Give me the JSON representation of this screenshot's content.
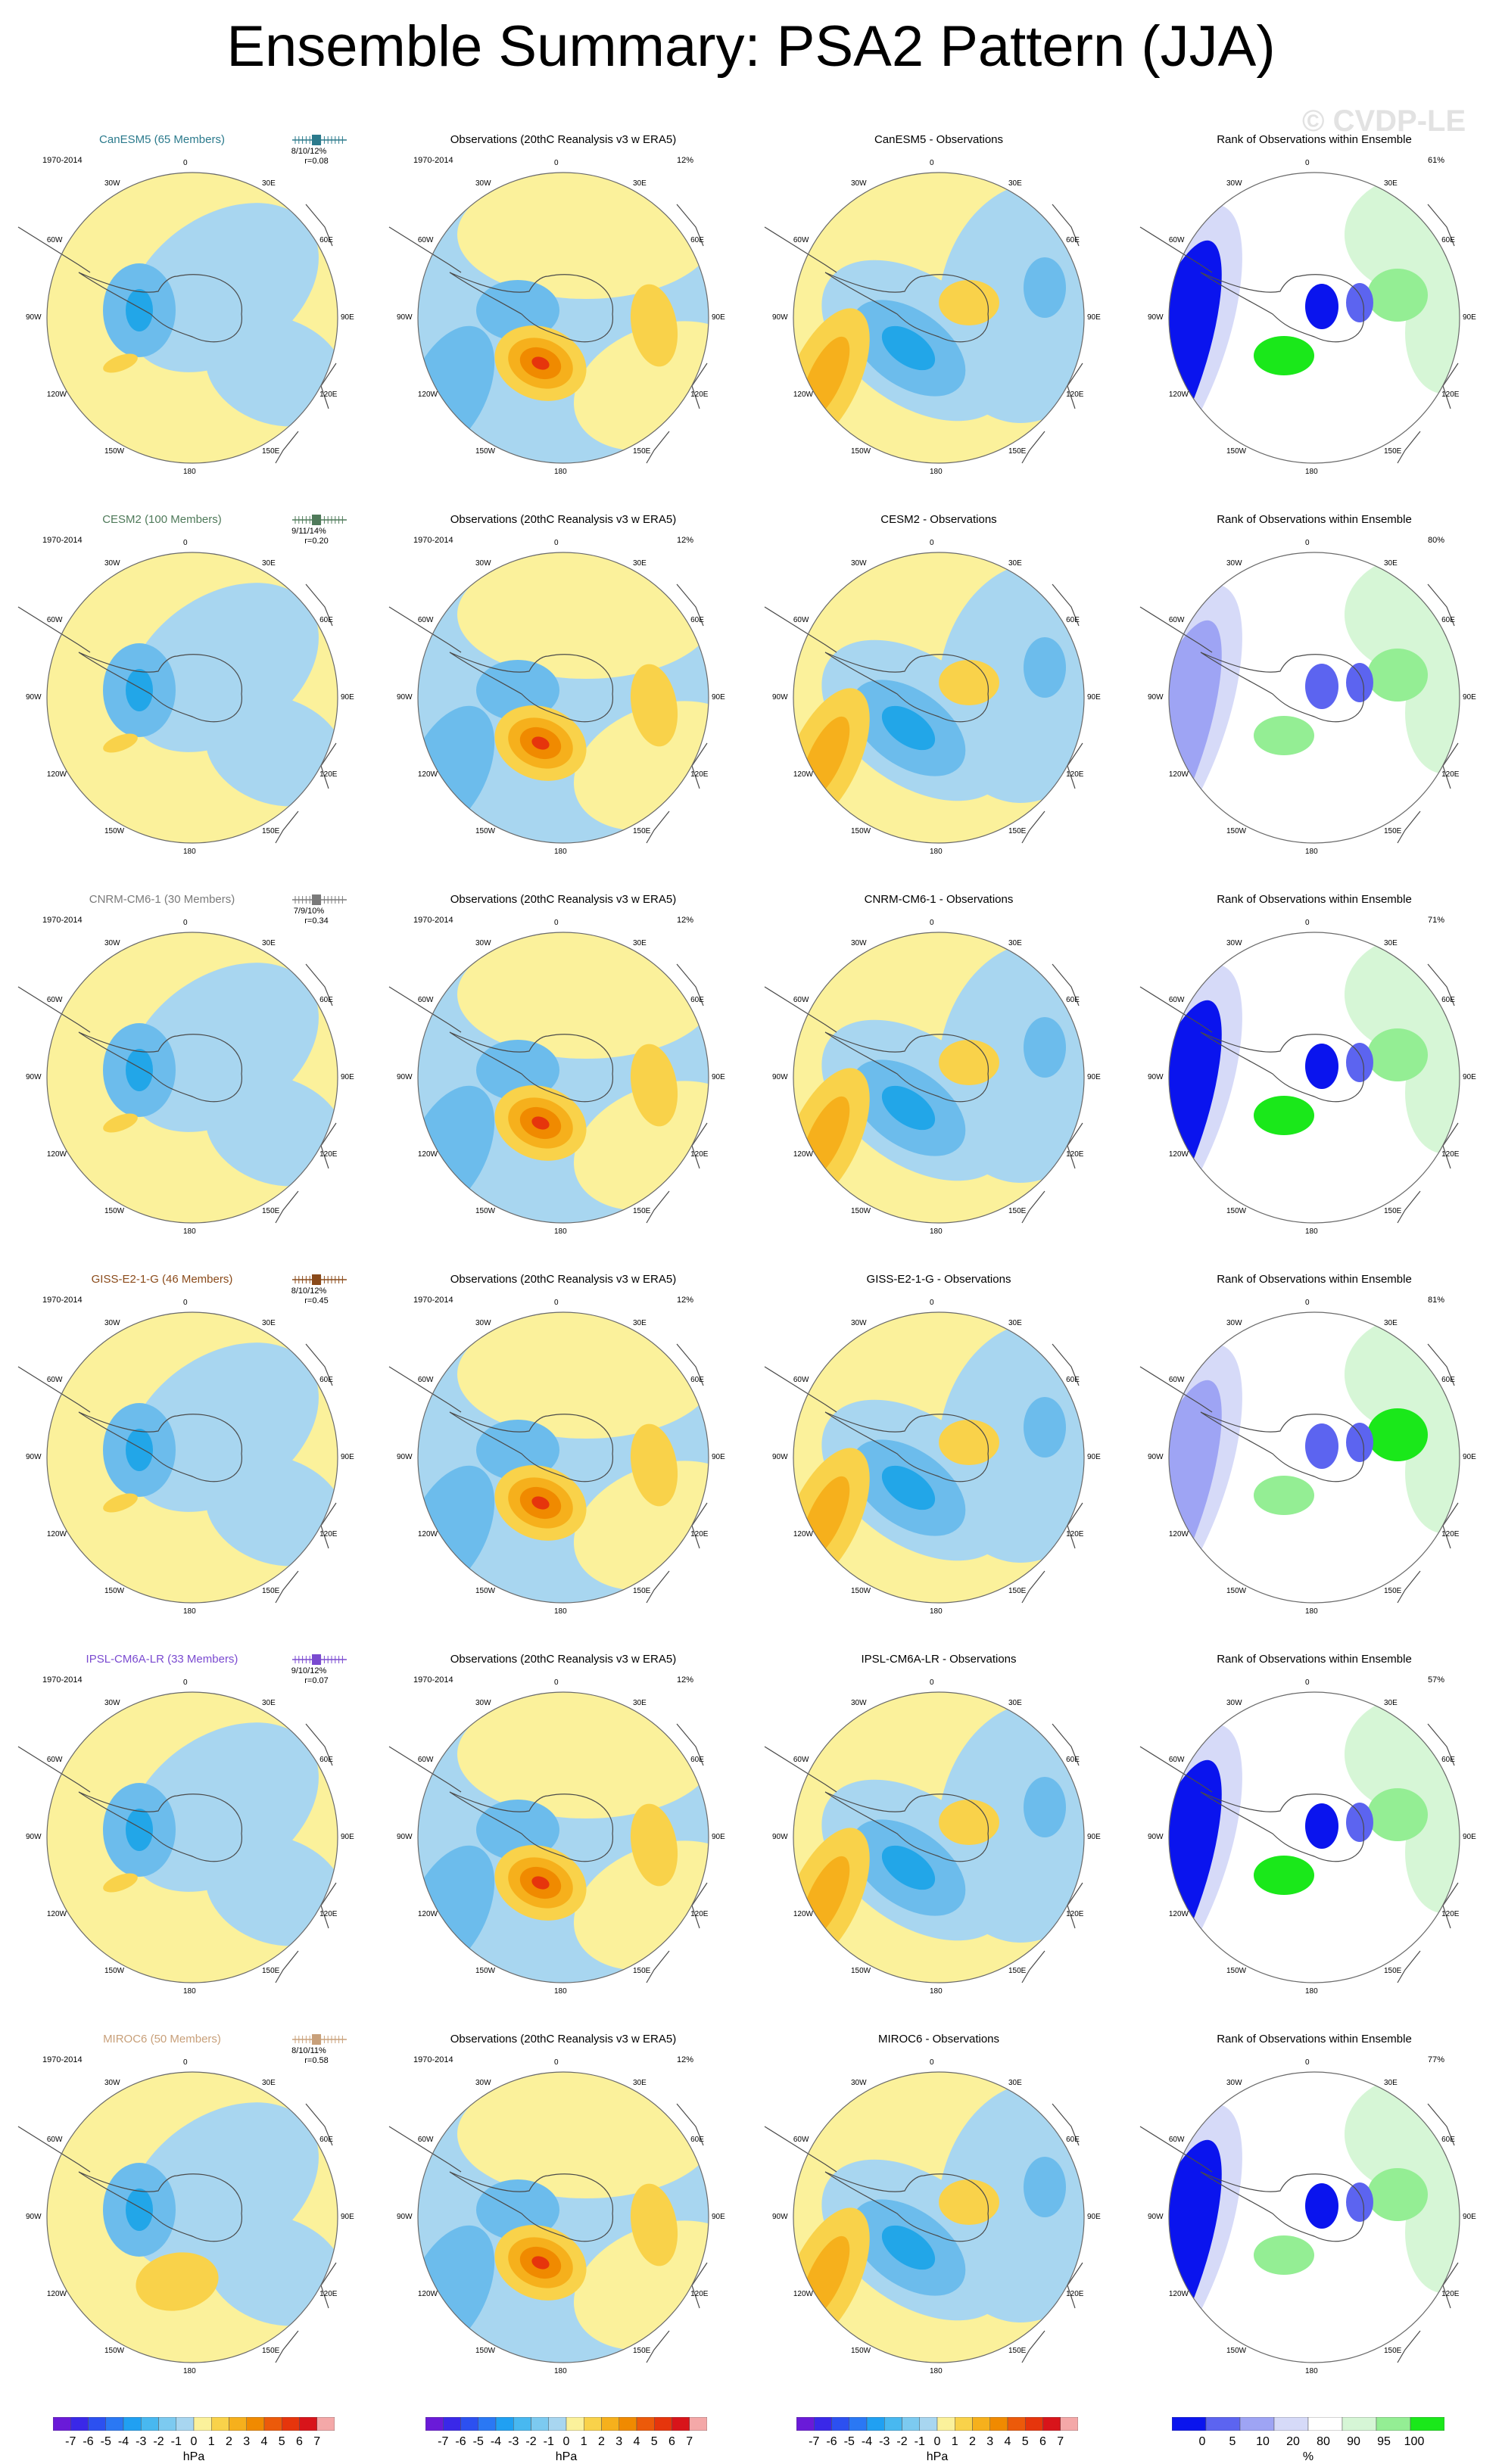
{
  "page": {
    "title": "Ensemble Summary: PSA2 Pattern (JJA)",
    "watermark": "© CVDP-LE"
  },
  "colors": {
    "land_yellow": "#fbf19b",
    "ocean_blue": "#a8d6f0",
    "mid_blue": "#6cbcec",
    "deep_blue": "#22a6e8",
    "orange_light": "#f9d24a",
    "orange_mid": "#f6b01c",
    "orange_deep": "#f08a00",
    "red": "#e6350c",
    "rank_blue": "#0a14ee",
    "rank_green": "#1ae81a"
  },
  "map_labels": {
    "lon": [
      "0",
      "30E",
      "60E",
      "90E",
      "120E",
      "150E",
      "180",
      "150W",
      "120W",
      "90W",
      "60W",
      "30W"
    ]
  },
  "rows": [
    {
      "model_title": "CanESM5 (65 Members)",
      "model_color": "#2b7a8c",
      "period": "1970-2014",
      "stats_line1": "8/10/12%",
      "stats_line2": "r=0.08",
      "obs_title": "Observations (20thC Reanalysis v3 w ERA5)",
      "obs_period": "1970-2014",
      "obs_pct": "12%",
      "diff_title": "CanESM5 - Observations",
      "rank_title": "Rank of Observations within Ensemble",
      "rank_pct": "61%"
    },
    {
      "model_title": "CESM2 (100 Members)",
      "model_color": "#4f7a5a",
      "period": "1970-2014",
      "stats_line1": "9/11/14%",
      "stats_line2": "r=0.20",
      "obs_title": "Observations (20thC Reanalysis v3 w ERA5)",
      "obs_period": "1970-2014",
      "obs_pct": "12%",
      "diff_title": "CESM2 - Observations",
      "rank_title": "Rank of Observations within Ensemble",
      "rank_pct": "80%"
    },
    {
      "model_title": "CNRM-CM6-1 (30 Members)",
      "model_color": "#7a7a7a",
      "period": "1970-2014",
      "stats_line1": "7/9/10%",
      "stats_line2": "r=0.34",
      "obs_title": "Observations (20thC Reanalysis v3 w ERA5)",
      "obs_period": "1970-2014",
      "obs_pct": "12%",
      "diff_title": "CNRM-CM6-1 - Observations",
      "rank_title": "Rank of Observations within Ensemble",
      "rank_pct": "71%"
    },
    {
      "model_title": "GISS-E2-1-G (46 Members)",
      "model_color": "#8a4a1a",
      "period": "1970-2014",
      "stats_line1": "8/10/12%",
      "stats_line2": "r=0.45",
      "obs_title": "Observations (20thC Reanalysis v3 w ERA5)",
      "obs_period": "1970-2014",
      "obs_pct": "12%",
      "diff_title": "GISS-E2-1-G - Observations",
      "rank_title": "Rank of Observations within Ensemble",
      "rank_pct": "81%"
    },
    {
      "model_title": "IPSL-CM6A-LR (33 Members)",
      "model_color": "#7a4ad0",
      "period": "1970-2014",
      "stats_line1": "9/10/12%",
      "stats_line2": "r=0.07",
      "obs_title": "Observations (20thC Reanalysis v3 w ERA5)",
      "obs_period": "1970-2014",
      "obs_pct": "12%",
      "diff_title": "IPSL-CM6A-LR - Observations",
      "rank_title": "Rank of Observations within Ensemble",
      "rank_pct": "57%"
    },
    {
      "model_title": "MIROC6 (50 Members)",
      "model_color": "#c8a07a",
      "period": "1970-2014",
      "stats_line1": "8/10/11%",
      "stats_line2": "r=0.58",
      "obs_title": "Observations (20thC Reanalysis v3 w ERA5)",
      "obs_period": "1970-2014",
      "obs_pct": "12%",
      "diff_title": "MIROC6 - Observations",
      "rank_title": "Rank of Observations within Ensemble",
      "rank_pct": "77%"
    }
  ],
  "colorbars": {
    "hpa": {
      "ticks": [
        "-7",
        "-6",
        "-5",
        "-4",
        "-3",
        "-2",
        "-1",
        "0",
        "1",
        "2",
        "3",
        "4",
        "5",
        "6",
        "7"
      ],
      "unit": "hPa",
      "colors": [
        "#6a1ad8",
        "#3a28e8",
        "#2c50f0",
        "#2a78f4",
        "#20a0f2",
        "#48b8f0",
        "#7ccaf0",
        "#a8d6f0",
        "#fbf19b",
        "#f9d24a",
        "#f6b01c",
        "#f08a00",
        "#ec5a0a",
        "#e6350c",
        "#d8141a",
        "#f4a8a8"
      ]
    },
    "rank": {
      "ticks": [
        "0",
        "5",
        "10",
        "20",
        "80",
        "90",
        "95",
        "100"
      ],
      "unit": "%",
      "colors": [
        "#0a14ee",
        "#5c64f0",
        "#9ea4f4",
        "#d6daf8",
        "#ffffff",
        "#d6f6d6",
        "#94ee94",
        "#1ae81a"
      ]
    }
  }
}
